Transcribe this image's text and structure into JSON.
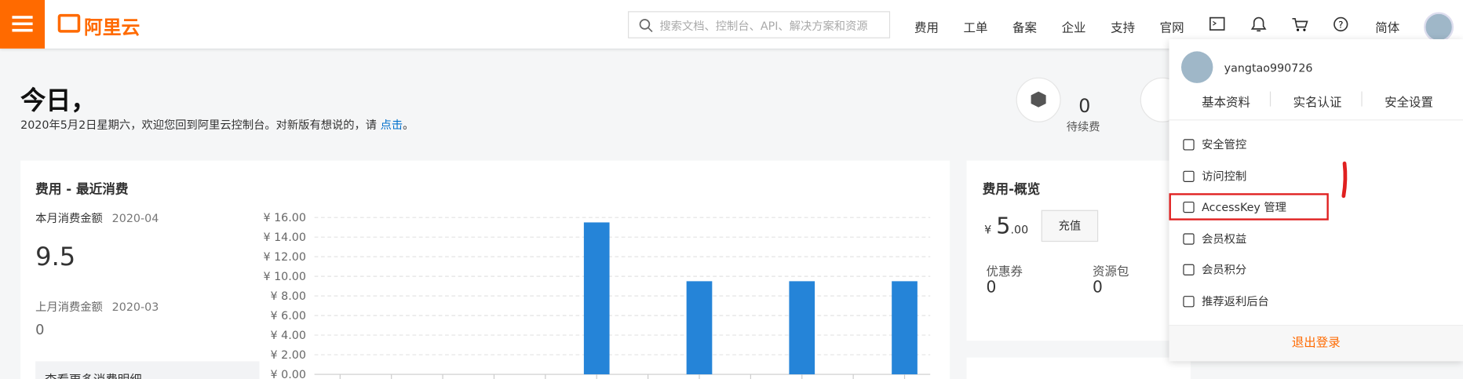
{
  "header": {
    "logo": "阿里云",
    "search_placeholder": "搜索文档、控制台、API、解决方案和资源",
    "nav": [
      "费用",
      "工单",
      "备案",
      "企业",
      "支持",
      "官网"
    ],
    "language": "简体"
  },
  "welcome": {
    "title": "今日，",
    "subtitle": "2020年5月2日星期六，欢迎您回到阿里云控制台。对新版有想说的，请 ",
    "link": "点击",
    "end": "。"
  },
  "renewal": {
    "value": 0,
    "label": "待续费"
  },
  "cost_card": {
    "title": "费用 - 最近消费",
    "this_month_label": "本月消费金额",
    "this_month_period": "2020-04",
    "this_month_amount": 9.5,
    "last_month_label": "上月消费金额",
    "last_month_period": "2020-03",
    "last_month_amount": 0,
    "more_link": "查看更多消费明细",
    "chart": {
      "type": "bar",
      "categories": [
        null,
        null,
        null,
        null,
        null,
        null,
        null,
        null,
        null,
        null,
        null,
        null
      ],
      "values": [
        0,
        0,
        0,
        0,
        0,
        15.5,
        0,
        9.5,
        0,
        9.5,
        0,
        9.5
      ],
      "color": "#2584d8",
      "ylim": [
        0,
        16
      ],
      "yticks": [
        {
          "value": 0,
          "label": "¥ 0.00"
        },
        {
          "value": 2,
          "label": "¥ 2.00"
        },
        {
          "value": 4,
          "label": "¥ 4.00"
        },
        {
          "value": 6,
          "label": "¥ 6.00"
        },
        {
          "value": 8,
          "label": "¥ 8.00"
        },
        {
          "value": 10,
          "label": "¥ 10.00"
        },
        {
          "value": 12,
          "label": "¥ 12.00"
        },
        {
          "value": 14,
          "label": "¥ 14.00"
        },
        {
          "value": 16,
          "label": "¥ 16.00"
        }
      ],
      "grid": true
    }
  },
  "overview": {
    "title": "费用-概览",
    "currency": "¥",
    "balance": "5",
    "balance_decimals": ".00",
    "recharge": "充值",
    "items": [
      {
        "label": "优惠券",
        "value": 0
      },
      {
        "label": "资源包",
        "value": 0
      }
    ]
  },
  "account_menu": {
    "username": "yangtao990726",
    "tabs": [
      "基本资料",
      "实名认证",
      "安全设置"
    ],
    "items": [
      "安全管控",
      "访问控制",
      "AccessKey 管理",
      "会员权益",
      "会员积分",
      "推荐返利后台"
    ],
    "logout": "退出登录"
  }
}
